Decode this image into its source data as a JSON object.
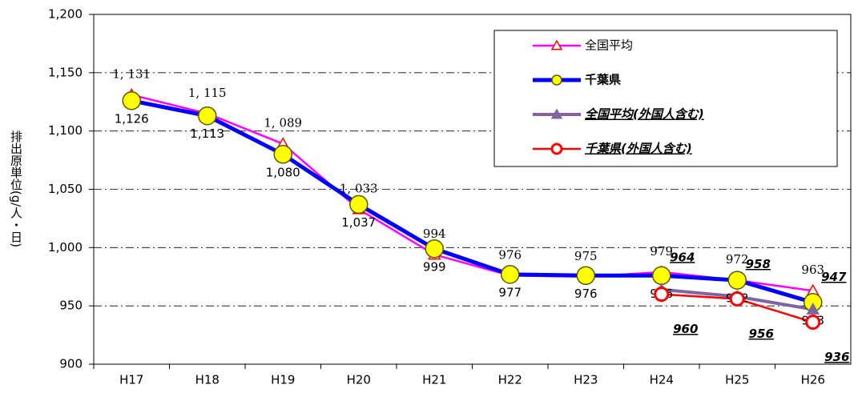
{
  "chart_data": {
    "type": "line",
    "y_label": "排出原単位(g/人・日)",
    "categories": [
      "H17",
      "H18",
      "H19",
      "H20",
      "H21",
      "H22",
      "H23",
      "H24",
      "H25",
      "H26"
    ],
    "series": [
      {
        "name": "全国平均",
        "color": "#ff00ff",
        "marker": "triangle",
        "marker_color": "#ff0000",
        "marker_fill": "#ffffff",
        "line_width": 2.5,
        "values": [
          1131,
          1115,
          1089,
          1033,
          994,
          976,
          975,
          979,
          972,
          963
        ],
        "value_labels": [
          "1, 131",
          "1, 115",
          "1, 089",
          "1, 033",
          "994",
          "976",
          "975",
          "979",
          "972",
          "963"
        ]
      },
      {
        "name": "千葉県",
        "color": "#0000ff",
        "marker": "circle",
        "marker_color": "#5a5a00",
        "marker_fill": "#ffff00",
        "line_width": 5,
        "values": [
          1126,
          1113,
          1080,
          1037,
          999,
          977,
          976,
          976,
          972,
          953
        ],
        "value_labels": [
          "1,126",
          "1,113",
          "1,080",
          "1,037",
          "999",
          "977",
          "976",
          "976",
          "972",
          "953"
        ]
      },
      {
        "name": "全国平均(外国人含む)",
        "color": "#8064a2",
        "marker": "triangle",
        "marker_color": "#8064a2",
        "marker_fill": "#8064a2",
        "line_width": 4,
        "values": [
          null,
          null,
          null,
          null,
          null,
          null,
          null,
          964,
          958,
          947
        ]
      },
      {
        "name": "千葉県(外国人含む)",
        "color": "#ff0000",
        "marker": "circle",
        "marker_color": "#ff0000",
        "marker_fill": "#ffffff",
        "line_width": 2.5,
        "values": [
          null,
          null,
          null,
          null,
          null,
          null,
          null,
          960,
          956,
          936
        ]
      }
    ],
    "ylim": [
      900,
      1200
    ],
    "yticks": [
      900,
      950,
      {
        "value": 1000,
        "label": "1,000"
      },
      {
        "value": 1050,
        "label": "1,050"
      },
      {
        "value": 1100,
        "label": "1,100"
      },
      {
        "value": 1150,
        "label": "1,150"
      },
      {
        "value": 1200,
        "label": "1,200"
      }
    ],
    "grid": true
  }
}
